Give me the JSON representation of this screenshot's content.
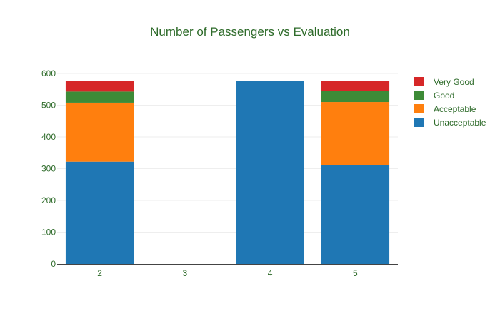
{
  "chart_data": {
    "type": "bar",
    "stacked": true,
    "title": "Number of Passengers vs Evaluation",
    "xlabel": "",
    "ylabel": "",
    "categories": [
      "2",
      "3",
      "4",
      "5"
    ],
    "ylim": [
      0,
      600
    ],
    "yticks": [
      0,
      100,
      200,
      300,
      400,
      500,
      600
    ],
    "grid": true,
    "legend_position": "right",
    "series": [
      {
        "name": "Unacceptable",
        "color": "#1f77b4",
        "values": [
          322,
          0,
          576,
          312
        ]
      },
      {
        "name": "Acceptable",
        "color": "#ff7f0e",
        "values": [
          186,
          0,
          0,
          198
        ]
      },
      {
        "name": "Good",
        "color": "#3d8b37",
        "values": [
          35,
          0,
          0,
          36
        ]
      },
      {
        "name": "Very Good",
        "color": "#d62728",
        "values": [
          33,
          0,
          0,
          30
        ]
      }
    ],
    "legend_order": [
      "Very Good",
      "Good",
      "Acceptable",
      "Unacceptable"
    ]
  }
}
